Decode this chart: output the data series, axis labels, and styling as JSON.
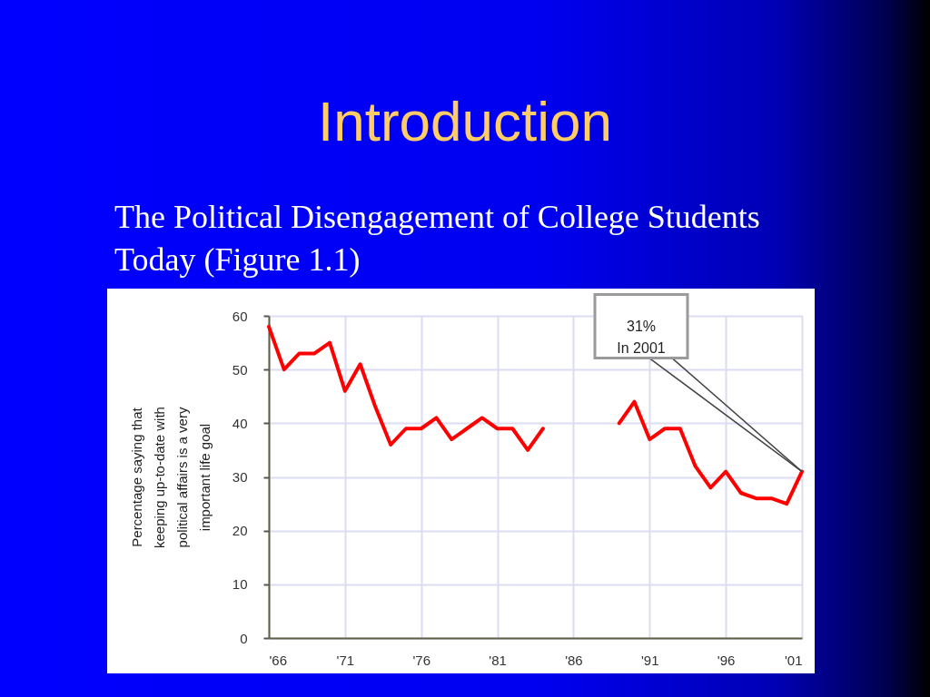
{
  "chart_data": {
    "type": "line",
    "title": "Introduction",
    "subtitle": "The Political Disengagement of College Students Today (Figure 1.1)",
    "ylabel": "Percentage saying that keeping up-to-date with political affairs is a very important life goal",
    "x": [
      1966,
      1967,
      1968,
      1969,
      1970,
      1971,
      1972,
      1973,
      1974,
      1975,
      1976,
      1977,
      1978,
      1979,
      1980,
      1981,
      1982,
      1983,
      1984,
      1985,
      1986,
      1987,
      1988,
      1989,
      1990,
      1991,
      1992,
      1993,
      1994,
      1995,
      1996,
      1997,
      1998,
      1999,
      2000,
      2001
    ],
    "series": [
      {
        "color": "#ff0000",
        "values": [
          58,
          50,
          53,
          53,
          55,
          46,
          51,
          43,
          36,
          39,
          39,
          41,
          37,
          39,
          41,
          39,
          39,
          35,
          39,
          null,
          null,
          null,
          null,
          40,
          44,
          37,
          39,
          39,
          32,
          28,
          31,
          27,
          26,
          26,
          25,
          31
        ]
      }
    ],
    "xlim": [
      1966,
      2001
    ],
    "xticks": [
      {
        "value": 1966,
        "label": "'66"
      },
      {
        "value": 1971,
        "label": "'71"
      },
      {
        "value": 1976,
        "label": "'76"
      },
      {
        "value": 1981,
        "label": "'81"
      },
      {
        "value": 1986,
        "label": "'86"
      },
      {
        "value": 1991,
        "label": "'91"
      },
      {
        "value": 1996,
        "label": "'96"
      },
      {
        "value": 2001,
        "label": "'01"
      }
    ],
    "ylim": [
      0,
      60
    ],
    "yticks": [
      0,
      10,
      20,
      30,
      40,
      50,
      60
    ],
    "grid": true,
    "line_style": "solid",
    "annotations": [
      {
        "text": "31%\nIn 2001",
        "x": 2001,
        "y": 31
      }
    ]
  }
}
